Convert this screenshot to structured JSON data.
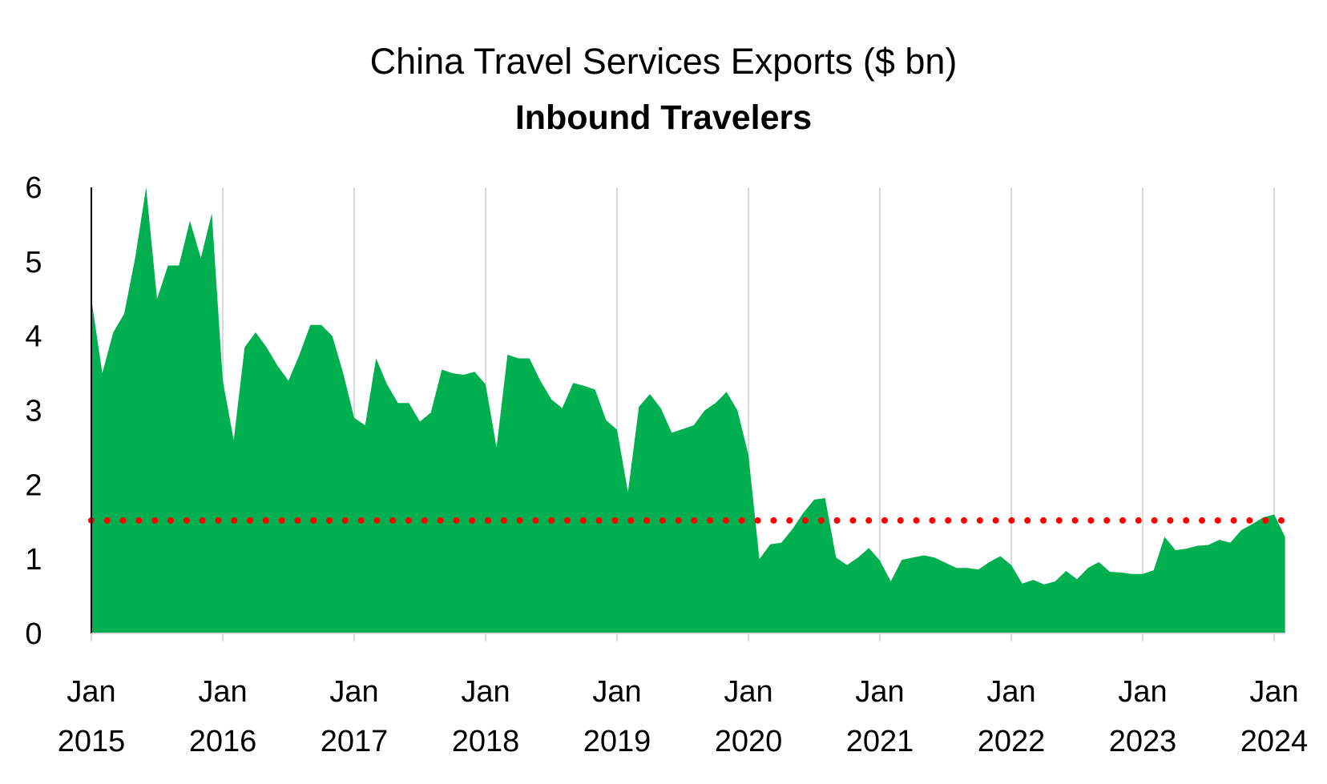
{
  "colors": {
    "area": "#00b050",
    "reference_line": "#ff0000",
    "grid": "#d9d9d9",
    "axis": "#000000"
  },
  "chart_data": {
    "type": "area",
    "title": "China Travel Services Exports ($ bn)",
    "subtitle": "Inbound Travelers",
    "xlabel": "",
    "ylabel": "",
    "ylim": [
      0,
      6
    ],
    "y_ticks": [
      "0",
      "1",
      "2",
      "3",
      "4",
      "5",
      "6"
    ],
    "x_ticks": [
      {
        "month": "Jan",
        "year": "2015"
      },
      {
        "month": "Jan",
        "year": "2016"
      },
      {
        "month": "Jan",
        "year": "2017"
      },
      {
        "month": "Jan",
        "year": "2018"
      },
      {
        "month": "Jan",
        "year": "2019"
      },
      {
        "month": "Jan",
        "year": "2020"
      },
      {
        "month": "Jan",
        "year": "2021"
      },
      {
        "month": "Jan",
        "year": "2022"
      },
      {
        "month": "Jan",
        "year": "2023"
      },
      {
        "month": "Jan",
        "year": "2024"
      }
    ],
    "grid": "vertical",
    "x_start": "2015-01",
    "series": [
      {
        "type": "area",
        "values": [
          4.5,
          3.5,
          4.05,
          4.3,
          5.05,
          6.0,
          4.5,
          4.95,
          4.95,
          5.55,
          5.05,
          5.65,
          3.4,
          2.6,
          3.85,
          4.05,
          3.85,
          3.6,
          3.4,
          3.75,
          4.15,
          4.15,
          4.0,
          3.5,
          2.9,
          2.8,
          3.7,
          3.35,
          3.1,
          3.1,
          2.85,
          2.97,
          3.55,
          3.5,
          3.48,
          3.52,
          3.35,
          2.5,
          3.75,
          3.7,
          3.7,
          3.4,
          3.15,
          3.03,
          3.37,
          3.33,
          3.28,
          2.87,
          2.74,
          1.9,
          3.05,
          3.22,
          3.03,
          2.7,
          2.75,
          2.8,
          3.0,
          3.1,
          3.25,
          3.0,
          2.4,
          1.0,
          1.2,
          1.22,
          1.4,
          1.62,
          1.8,
          1.82,
          1.02,
          0.92,
          1.02,
          1.15,
          0.98,
          0.7,
          0.99,
          1.02,
          1.05,
          1.02,
          0.95,
          0.88,
          0.88,
          0.86,
          0.96,
          1.04,
          0.92,
          0.67,
          0.72,
          0.66,
          0.7,
          0.84,
          0.73,
          0.88,
          0.96,
          0.83,
          0.82,
          0.8,
          0.8,
          0.85,
          1.3,
          1.12,
          1.14,
          1.18,
          1.19,
          1.26,
          1.22,
          1.39,
          1.47,
          1.56,
          1.6,
          1.3
        ]
      },
      {
        "type": "reference-line",
        "style": "dotted",
        "value": 1.52
      }
    ]
  }
}
